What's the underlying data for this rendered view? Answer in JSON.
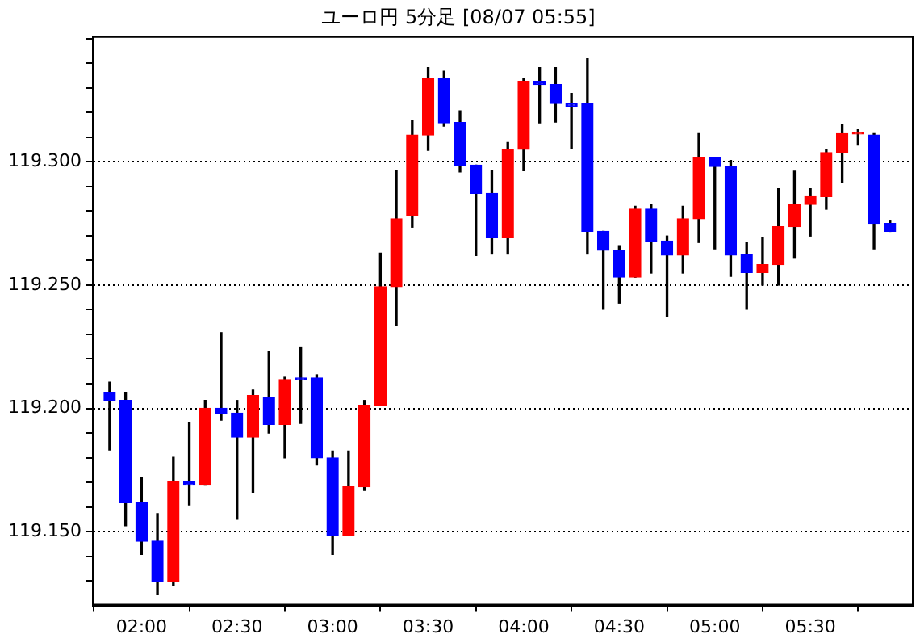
{
  "chart_data": {
    "type": "candlestick",
    "title": "ユーロ円 5分足 [08/07 05:55]",
    "x": [
      1.8333,
      1.9167,
      2,
      2.0833,
      2.1667,
      2.25,
      2.3333,
      2.4167,
      2.5,
      2.5833,
      2.6667,
      2.75,
      2.8333,
      2.9167,
      3,
      3.0833,
      3.1667,
      3.25,
      3.3333,
      3.4167,
      3.5,
      3.5833,
      3.6667,
      3.75,
      3.8333,
      3.9167,
      4,
      4.0833,
      4.1667,
      4.25,
      4.3333,
      4.4167,
      4.5,
      4.5833,
      4.6667,
      4.75,
      4.8333,
      4.9167,
      5,
      5.0833,
      5.1667,
      5.25,
      5.3333,
      5.4167,
      5.5,
      5.5833,
      5.6667,
      5.75,
      5.8333,
      5.9167
    ],
    "ohlc": [
      [
        119.2065,
        119.2106,
        119.1831,
        119.2032
      ],
      [
        119.2032,
        119.2065,
        119.1524,
        119.1617
      ],
      [
        119.1617,
        119.1721,
        119.1407,
        119.1461
      ],
      [
        119.1461,
        119.1573,
        119.1244,
        119.1299
      ],
      [
        119.1299,
        119.1801,
        119.1283,
        119.1701
      ],
      [
        119.1701,
        119.1944,
        119.1608,
        119.1688
      ],
      [
        119.1688,
        119.2032,
        119.1688,
        119.2
      ],
      [
        119.2,
        119.2307,
        119.1952,
        119.1981
      ],
      [
        119.1981,
        119.2032,
        119.155,
        119.1883
      ],
      [
        119.1883,
        119.2074,
        119.166,
        119.2052
      ],
      [
        119.2045,
        119.2229,
        119.19,
        119.1935
      ],
      [
        119.1935,
        119.2126,
        119.1799,
        119.2117
      ],
      [
        119.2123,
        119.2249,
        119.1939,
        119.2117
      ],
      [
        119.2123,
        119.2136,
        119.177,
        119.1799
      ],
      [
        119.1799,
        119.1827,
        119.1407,
        119.1485
      ],
      [
        119.1485,
        119.1827,
        119.1485,
        119.1682
      ],
      [
        119.1682,
        119.2032,
        119.1667,
        119.2013
      ],
      [
        119.2013,
        119.263,
        119.2013,
        119.2494
      ],
      [
        119.2494,
        119.2964,
        119.2338,
        119.2769
      ],
      [
        119.2782,
        119.3169,
        119.2735,
        119.3109
      ],
      [
        119.3109,
        119.3383,
        119.3047,
        119.334
      ],
      [
        119.334,
        119.3368,
        119.3145,
        119.3158
      ],
      [
        119.316,
        119.3207,
        119.2959,
        119.2987
      ],
      [
        119.2987,
        119.2987,
        119.262,
        119.2872
      ],
      [
        119.2872,
        119.2964,
        119.2626,
        119.2692
      ],
      [
        119.2692,
        119.3079,
        119.2626,
        119.3051
      ],
      [
        119.3051,
        119.334,
        119.2964,
        119.3327
      ],
      [
        119.3327,
        119.3383,
        119.3158,
        119.3314
      ],
      [
        119.3314,
        119.3383,
        119.3162,
        119.3237
      ],
      [
        119.3237,
        119.3278,
        119.3053,
        119.3224
      ],
      [
        119.3237,
        119.3419,
        119.2626,
        119.2718
      ],
      [
        119.2718,
        119.2718,
        119.2402,
        119.2641
      ],
      [
        119.2641,
        119.266,
        119.2427,
        119.2532
      ],
      [
        119.2532,
        119.282,
        119.2532,
        119.2808
      ],
      [
        119.2808,
        119.2827,
        119.2549,
        119.2679
      ],
      [
        119.2679,
        119.2699,
        119.2372,
        119.2622
      ],
      [
        119.2622,
        119.282,
        119.2549,
        119.2769
      ],
      [
        119.2769,
        119.3115,
        119.2673,
        119.3019
      ],
      [
        119.3019,
        119.3019,
        119.2647,
        119.2981
      ],
      [
        119.2981,
        119.3006,
        119.2536,
        119.2622
      ],
      [
        119.2622,
        119.2673,
        119.2402,
        119.2551
      ],
      [
        119.2551,
        119.2692,
        119.25,
        119.2583
      ],
      [
        119.2583,
        119.2891,
        119.25,
        119.2737
      ],
      [
        119.2737,
        119.2962,
        119.2609,
        119.2827
      ],
      [
        119.2827,
        119.2891,
        119.2699,
        119.2859
      ],
      [
        119.2859,
        119.3051,
        119.2808,
        119.3038
      ],
      [
        119.3038,
        119.315,
        119.2917,
        119.3115
      ],
      [
        119.3113,
        119.313,
        119.3068,
        119.3113
      ],
      [
        119.3109,
        119.3115,
        119.2647,
        119.275
      ],
      [
        119.275,
        119.2763,
        119.2718,
        119.2718
      ]
    ],
    "colors": [
      "#0000ff",
      "#0000ff",
      "#0000ff",
      "#0000ff",
      "#ff0000",
      "#0000ff",
      "#ff0000",
      "#0000ff",
      "#0000ff",
      "#ff0000",
      "#0000ff",
      "#ff0000",
      "#0000ff",
      "#0000ff",
      "#0000ff",
      "#ff0000",
      "#ff0000",
      "#ff0000",
      "#ff0000",
      "#ff0000",
      "#ff0000",
      "#0000ff",
      "#0000ff",
      "#0000ff",
      "#0000ff",
      "#ff0000",
      "#ff0000",
      "#0000ff",
      "#0000ff",
      "#0000ff",
      "#0000ff",
      "#0000ff",
      "#0000ff",
      "#ff0000",
      "#0000ff",
      "#0000ff",
      "#ff0000",
      "#ff0000",
      "#0000ff",
      "#0000ff",
      "#0000ff",
      "#ff0000",
      "#ff0000",
      "#ff0000",
      "#ff0000",
      "#ff0000",
      "#ff0000",
      "#ff0000",
      "#0000ff",
      "#0000ff"
    ],
    "xlim": [
      1.745,
      6.04
    ],
    "xticks": [
      {
        "value": 2,
        "label": "02:00"
      },
      {
        "value": 2.5,
        "label": "02:30"
      },
      {
        "value": 3,
        "label": "03:00"
      },
      {
        "value": 3.5,
        "label": "03:30"
      },
      {
        "value": 4,
        "label": "04:00"
      },
      {
        "value": 4.5,
        "label": "04:30"
      },
      {
        "value": 5,
        "label": "05:00"
      },
      {
        "value": 5.5,
        "label": "05:30"
      }
    ],
    "ylim": [
      119.12,
      119.351
    ],
    "yticks": [
      {
        "value": 119.13,
        "label": null
      },
      {
        "value": 119.14,
        "label": null
      },
      {
        "value": 119.15,
        "label": "119.150"
      },
      {
        "value": 119.16,
        "label": null
      },
      {
        "value": 119.17,
        "label": null
      },
      {
        "value": 119.18,
        "label": null
      },
      {
        "value": 119.19,
        "label": null
      },
      {
        "value": 119.2,
        "label": "119.200"
      },
      {
        "value": 119.21,
        "label": null
      },
      {
        "value": 119.22,
        "label": null
      },
      {
        "value": 119.23,
        "label": null
      },
      {
        "value": 119.24,
        "label": null
      },
      {
        "value": 119.25,
        "label": "119.250"
      },
      {
        "value": 119.26,
        "label": null
      },
      {
        "value": 119.27,
        "label": null
      },
      {
        "value": 119.28,
        "label": null
      },
      {
        "value": 119.29,
        "label": null
      },
      {
        "value": 119.3,
        "label": "119.300"
      },
      {
        "value": 119.31,
        "label": null
      },
      {
        "value": 119.32,
        "label": null
      },
      {
        "value": 119.33,
        "label": null
      },
      {
        "value": 119.34,
        "label": null
      },
      {
        "value": 119.35,
        "label": null
      }
    ],
    "grid": "y",
    "legend": false
  }
}
